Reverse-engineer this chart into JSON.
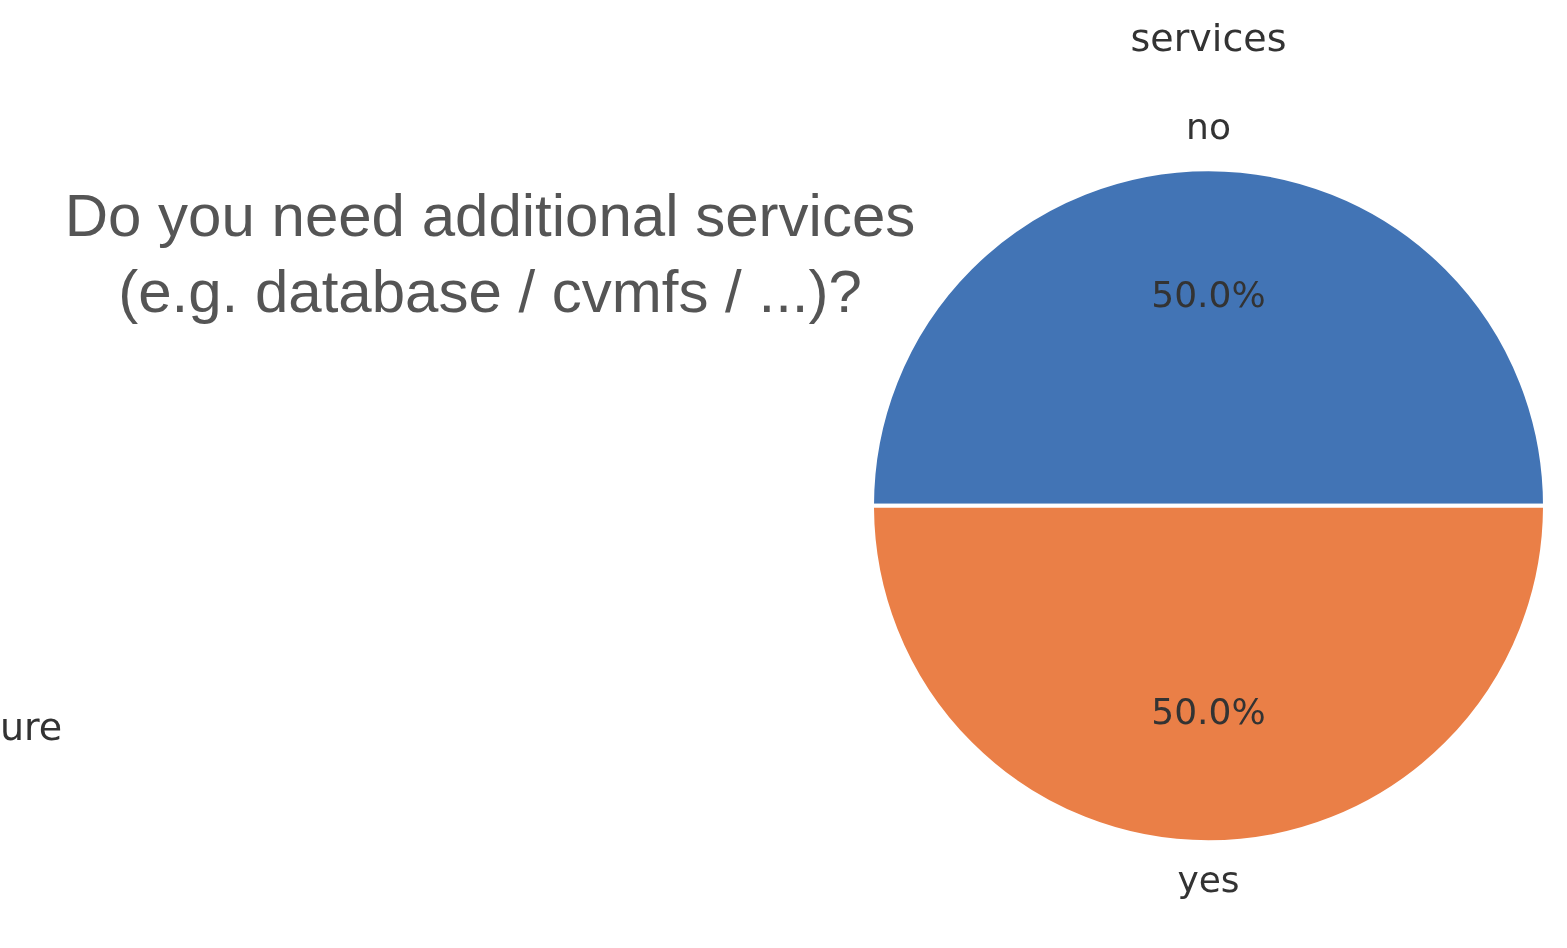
{
  "chart_data": {
    "type": "pie",
    "title": "services",
    "subtitle": "Do you need additional services\n(e.g. database / cvmfs / ...)?",
    "categories": [
      "no",
      "yes"
    ],
    "values": [
      50,
      50
    ],
    "value_labels": [
      "50.0%",
      "50.0%"
    ],
    "colors": [
      "#4274b5",
      "#ea7f47"
    ],
    "annotations": [
      "ure"
    ],
    "legend": false
  }
}
